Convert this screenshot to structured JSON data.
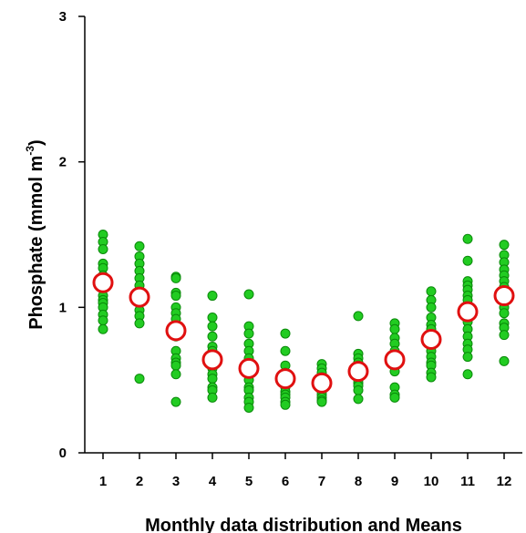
{
  "chart_data": {
    "type": "scatter",
    "title": "",
    "xlabel": "Monthly data distribution and Means",
    "ylabel_main": "Phosphate (mmol m",
    "ylabel_sup": "-3",
    "ylabel_close": ")",
    "x_ticks": [
      "1",
      "2",
      "3",
      "4",
      "5",
      "6",
      "7",
      "8",
      "9",
      "10",
      "11",
      "12"
    ],
    "y_ticks": [
      "0",
      "1",
      "2",
      "3"
    ],
    "ylim": [
      0,
      3
    ],
    "xlim": [
      0.5,
      12.5
    ],
    "grid": false,
    "point_color": "#22cc22",
    "point_edge": "#0a8a0a",
    "mean_color": "#e01010",
    "series": [
      {
        "name": "",
        "marker": "filled-circle",
        "points": [
          {
            "x": 1,
            "values": [
              1.5,
              1.45,
              1.4,
              1.3,
              1.27,
              1.22,
              1.17,
              1.08,
              1.05,
              1.03,
              1.0,
              0.95,
              0.91,
              0.85
            ]
          },
          {
            "x": 2,
            "values": [
              1.42,
              1.35,
              1.3,
              1.25,
              1.2,
              1.15,
              1.1,
              1.06,
              1.03,
              0.98,
              0.94,
              0.89,
              0.51
            ]
          },
          {
            "x": 3,
            "values": [
              1.21,
              1.2,
              1.1,
              1.08,
              1.0,
              0.96,
              0.92,
              0.85,
              0.8,
              0.7,
              0.65,
              0.62,
              0.6,
              0.54,
              0.35
            ]
          },
          {
            "x": 4,
            "values": [
              1.08,
              0.93,
              0.87,
              0.8,
              0.73,
              0.7,
              0.66,
              0.62,
              0.58,
              0.54,
              0.51,
              0.45,
              0.43,
              0.38
            ]
          },
          {
            "x": 5,
            "values": [
              1.09,
              0.87,
              0.82,
              0.75,
              0.7,
              0.65,
              0.6,
              0.55,
              0.5,
              0.45,
              0.43,
              0.38,
              0.35,
              0.31
            ]
          },
          {
            "x": 6,
            "values": [
              0.82,
              0.7,
              0.6,
              0.55,
              0.52,
              0.5,
              0.47,
              0.45,
              0.42,
              0.4,
              0.38,
              0.35,
              0.33
            ]
          },
          {
            "x": 7,
            "values": [
              0.61,
              0.58,
              0.55,
              0.52,
              0.5,
              0.48,
              0.46,
              0.44,
              0.42,
              0.4,
              0.38,
              0.36,
              0.35
            ]
          },
          {
            "x": 8,
            "values": [
              0.94,
              0.68,
              0.65,
              0.62,
              0.6,
              0.57,
              0.55,
              0.52,
              0.5,
              0.48,
              0.46,
              0.43,
              0.37
            ]
          },
          {
            "x": 9,
            "values": [
              0.89,
              0.85,
              0.79,
              0.75,
              0.7,
              0.66,
              0.62,
              0.59,
              0.56,
              0.45,
              0.4,
              0.38
            ]
          },
          {
            "x": 10,
            "values": [
              1.11,
              1.05,
              1.0,
              0.93,
              0.88,
              0.85,
              0.8,
              0.75,
              0.7,
              0.66,
              0.62,
              0.6,
              0.55,
              0.52
            ]
          },
          {
            "x": 11,
            "values": [
              1.47,
              1.32,
              1.18,
              1.15,
              1.12,
              1.08,
              1.05,
              1.0,
              0.97,
              0.9,
              0.85,
              0.8,
              0.75,
              0.71,
              0.66,
              0.54
            ]
          },
          {
            "x": 12,
            "values": [
              1.43,
              1.36,
              1.31,
              1.26,
              1.22,
              1.18,
              1.14,
              1.1,
              1.05,
              1.0,
              0.96,
              0.89,
              0.86,
              0.81,
              0.63
            ]
          }
        ]
      },
      {
        "name": "",
        "marker": "open-circle",
        "values": [
          1.17,
          1.07,
          0.84,
          0.64,
          0.58,
          0.51,
          0.48,
          0.56,
          0.64,
          0.78,
          0.97,
          1.08
        ]
      }
    ]
  }
}
